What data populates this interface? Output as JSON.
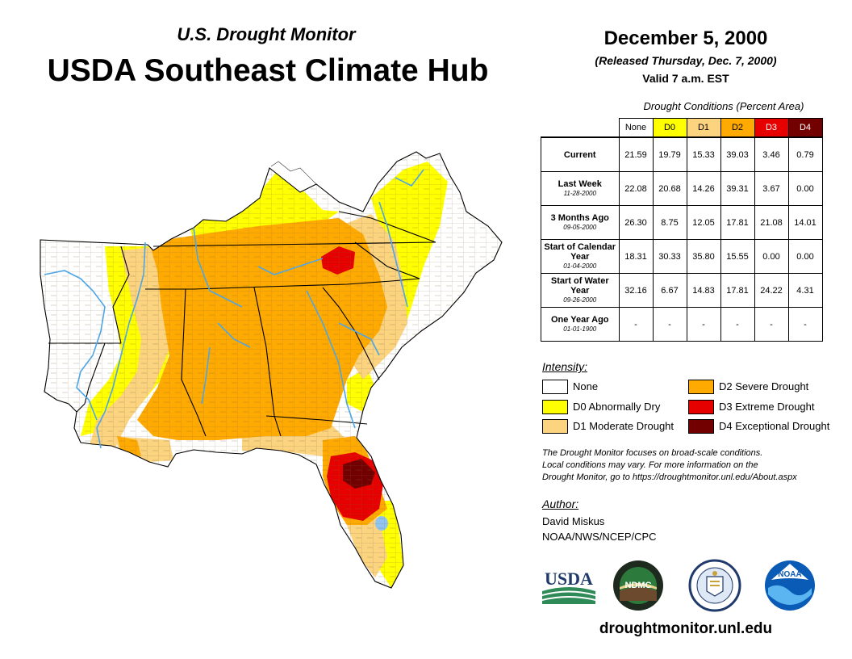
{
  "header": {
    "subtitle": "U.S. Drought Monitor",
    "title": "USDA Southeast Climate Hub",
    "date": "December 5, 2000",
    "released": "(Released Thursday, Dec. 7, 2000)",
    "valid": "Valid 7 a.m. EST"
  },
  "table": {
    "caption": "Drought Conditions (Percent Area)",
    "columns": [
      "None",
      "D0",
      "D1",
      "D2",
      "D3",
      "D4"
    ],
    "rows": [
      {
        "label": "Current",
        "date": "",
        "values": [
          "21.59",
          "19.79",
          "15.33",
          "39.03",
          "3.46",
          "0.79"
        ]
      },
      {
        "label": "Last Week",
        "date": "11-28-2000",
        "values": [
          "22.08",
          "20.68",
          "14.26",
          "39.31",
          "3.67",
          "0.00"
        ]
      },
      {
        "label": "3 Months Ago",
        "date": "09-05-2000",
        "values": [
          "26.30",
          "8.75",
          "12.05",
          "17.81",
          "21.08",
          "14.01"
        ]
      },
      {
        "label": "Start of Calendar Year",
        "date": "01-04-2000",
        "values": [
          "18.31",
          "30.33",
          "35.80",
          "15.55",
          "0.00",
          "0.00"
        ]
      },
      {
        "label": "Start of Water Year",
        "date": "09-26-2000",
        "values": [
          "32.16",
          "6.67",
          "14.83",
          "17.81",
          "24.22",
          "4.31"
        ]
      },
      {
        "label": "One Year Ago",
        "date": "01-01-1900",
        "values": [
          "-",
          "-",
          "-",
          "-",
          "-",
          "-"
        ]
      }
    ]
  },
  "legend": {
    "title": "Intensity:",
    "items": [
      {
        "label": "None",
        "color": "#ffffff"
      },
      {
        "label": "D0 Abnormally Dry",
        "color": "#ffff00"
      },
      {
        "label": "D1 Moderate Drought",
        "color": "#fcd37f"
      },
      {
        "label": "D2 Severe Drought",
        "color": "#ffaa00"
      },
      {
        "label": "D3 Extreme Drought",
        "color": "#e60000"
      },
      {
        "label": "D4 Exceptional Drought",
        "color": "#730000"
      }
    ]
  },
  "note": {
    "line1": "The Drought Monitor focuses on broad-scale conditions.",
    "line2": "Local conditions may vary. For more information on the",
    "line3": "Drought Monitor, go to https://droughtmonitor.unl.edu/About.aspx"
  },
  "author": {
    "title": "Author:",
    "name": "David Miskus",
    "org": "NOAA/NWS/NCEP/CPC"
  },
  "logos": {
    "usda": "USDA",
    "ndmc": "NDMC",
    "noaa": "NOAA"
  },
  "footer": {
    "url": "droughtmonitor.unl.edu"
  },
  "colors": {
    "none": "#ffffff",
    "d0": "#ffff00",
    "d1": "#fcd37f",
    "d2": "#ffaa00",
    "d3": "#e60000",
    "d4": "#730000",
    "river": "#4da6e6",
    "line": "#6b4a2e"
  }
}
